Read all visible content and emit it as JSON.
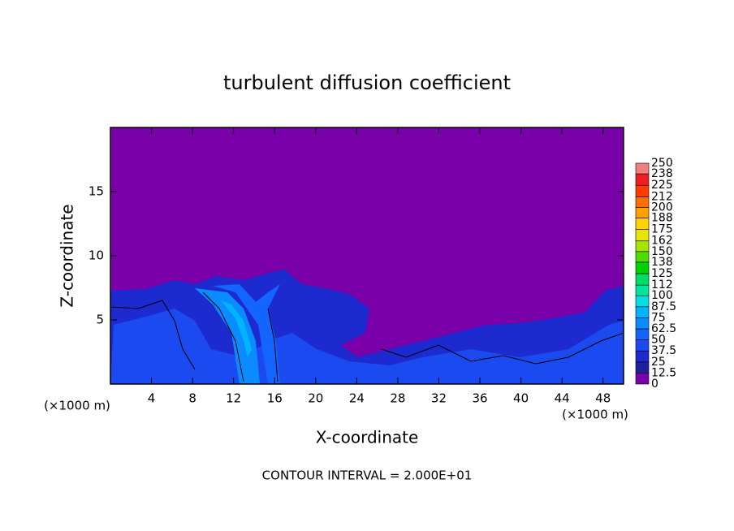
{
  "chart_data": {
    "type": "contour",
    "title": "turbulent diffusion coefficient",
    "x_label": "X-coordinate",
    "y_label": "Z-coordinate",
    "x_unit_left": "(×1000 m)",
    "x_unit_right": "(×1000 m)",
    "note": "CONTOUR INTERVAL = 2.000E+01",
    "xlim": [
      0,
      50
    ],
    "xticks": [
      4,
      8,
      12,
      16,
      20,
      24,
      28,
      32,
      36,
      40,
      44,
      48
    ],
    "ylim": [
      0,
      20
    ],
    "yticks": [
      5,
      10,
      15
    ],
    "colorbar": {
      "levels": [
        0,
        12.5,
        25,
        37.5,
        50,
        62.5,
        75,
        87.5,
        100,
        112,
        125,
        138,
        150,
        162,
        175,
        188,
        200,
        212,
        225,
        238,
        250
      ],
      "colors": [
        "#7a00aa",
        "#20209a",
        "#1c2ad0",
        "#1a4af0",
        "#1464ff",
        "#0a8cff",
        "#00b4ff",
        "#00e0e0",
        "#00e6a0",
        "#00dc64",
        "#00d200",
        "#50dc00",
        "#a0e600",
        "#e6e600",
        "#ffd200",
        "#ffa000",
        "#ff6e00",
        "#ff3c00",
        "#f01e1e",
        "#f08080"
      ]
    }
  }
}
